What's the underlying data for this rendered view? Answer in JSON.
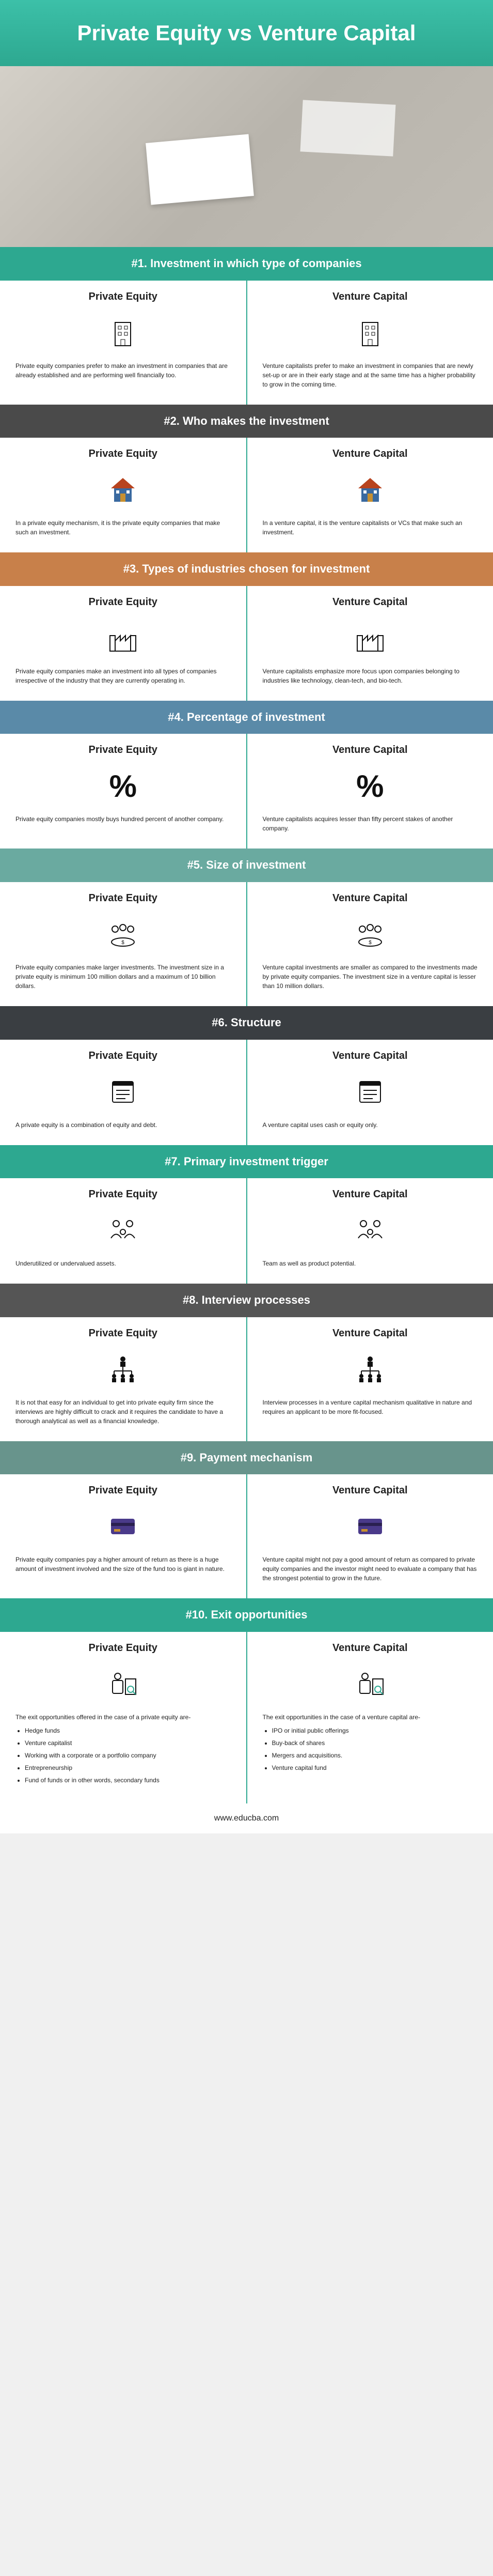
{
  "main_title": "Private Equity vs Venture Capital",
  "footer": "www.educba.com",
  "col_pe": "Private Equity",
  "col_vc": "Venture Capital",
  "colors": {
    "teal": "#2da890",
    "darkgray": "#4a4a4a",
    "orange": "#c8804a",
    "blue": "#5a8aa8",
    "lightteal": "#6aaaa0",
    "charcoal": "#3a3e42",
    "gray2": "#555555",
    "sage": "#68948c"
  },
  "sections": [
    {
      "header": "#1. Investment in which type of companies",
      "pe_text": "Private equity companies prefer to make an investment in companies that are already established and are performing well financially too.",
      "vc_text": "Venture capitalists prefer to make an investment in companies that are newly set-up or are in their early stage and at the same time has a higher probability to grow in the coming time."
    },
    {
      "header": "#2. Who makes the investment",
      "pe_text": "In a private equity mechanism, it is the private equity companies that make such an investment.",
      "vc_text": "In a venture capital, it is the venture capitalists or VCs that make such an investment."
    },
    {
      "header": "#3. Types of industries chosen for investment",
      "pe_text": "Private equity companies make an investment into all types of companies irrespective of the industry that they are currently operating in.",
      "vc_text": "Venture capitalists emphasize more focus upon companies belonging to industries like technology, clean-tech, and bio-tech."
    },
    {
      "header": "#4. Percentage of investment",
      "pe_text": "Private equity companies mostly buys hundred percent of another company.",
      "vc_text": "Venture capitalists acquires lesser than fifty percent stakes of another company."
    },
    {
      "header": "#5. Size of investment",
      "pe_text": "Private equity companies make larger investments. The investment size in a private equity is minimum 100 million dollars and a maximum of 10 billion dollars.",
      "vc_text": "Venture capital investments are smaller as compared to the investments made by private equity companies. The investment size in a venture capital is lesser than 10 million dollars."
    },
    {
      "header": "#6. Structure",
      "pe_text": "A private equity is a combination of equity and debt.",
      "vc_text": "A venture capital uses cash or equity only."
    },
    {
      "header": "#7. Primary investment trigger",
      "pe_text": "Underutilized or undervalued assets.",
      "vc_text": "Team as well as product potential."
    },
    {
      "header": "#8. Interview processes",
      "pe_text": "It is not that easy for an individual to get into private equity firm since the interviews are highly difficult to crack and it requires the candidate to have a thorough analytical as well as a financial knowledge.",
      "vc_text": "Interview processes in a venture capital mechanism qualitative in nature and requires an applicant to be more fit-focused."
    },
    {
      "header": "#9. Payment mechanism",
      "pe_text": "Private equity companies pay a higher amount of return as there is a huge amount of investment involved and the size of the fund too is giant in nature.",
      "vc_text": "Venture capital might not pay a good amount of return as compared to private equity companies and the investor might need to evaluate a company that has the strongest potential to grow in the future."
    },
    {
      "header": "#10. Exit opportunities",
      "pe_intro": "The exit opportunities offered in the case of a private equity are-",
      "vc_intro": "The exit opportunities in the case of a venture capital are-",
      "pe_list": [
        "Hedge funds",
        "Venture capitalist",
        "Working with a corporate or a portfolio company",
        "Entrepreneurship",
        "Fund of funds or in other words, secondary funds"
      ],
      "vc_list": [
        "IPO or initial public offerings",
        "Buy-back of shares",
        "Mergers and acquisitions.",
        "Venture capital fund"
      ]
    }
  ]
}
